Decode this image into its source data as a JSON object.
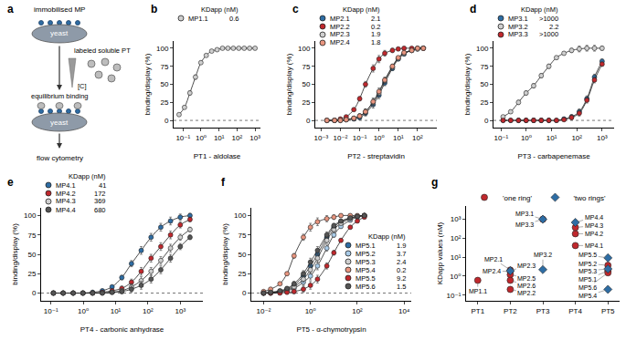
{
  "diagram": {
    "panel": "a",
    "top_label": "immobilised MP",
    "top_cell": "yeast",
    "reagent": "labeled soluble PT",
    "concentration": "[C]",
    "step": "equilibrium binding",
    "bottom_cell": "yeast",
    "readout": "flow cytometry"
  },
  "chart_data": [
    {
      "panel": "b",
      "type": "line",
      "marker": "circle",
      "log": "x",
      "grid": false,
      "legend": "upper left",
      "legend_title": "KDapp (nM)",
      "xlabel": "PT1 - aldolase",
      "ylabel": "binding/display (%)",
      "baseline": 0,
      "xlim": [
        0.03,
        2000
      ],
      "xticks": [
        {
          "value": 0.1,
          "label": "10⁻¹"
        },
        {
          "value": 1,
          "label": "10⁰"
        },
        {
          "value": 10,
          "label": "10¹"
        },
        {
          "value": 100,
          "label": "10²"
        },
        {
          "value": 1000,
          "label": "10³"
        }
      ],
      "ylim": [
        -10,
        110
      ],
      "yticks": [
        0,
        25,
        50,
        75,
        100
      ],
      "x": [
        0.06,
        0.12,
        0.24,
        0.49,
        0.98,
        1.95,
        3.9,
        7.8,
        15.6,
        31,
        62,
        125,
        250,
        500,
        1000
      ],
      "series": [
        {
          "name": "MP1.1",
          "kd": "0.6",
          "color": "#cfcfcf",
          "values": [
            8,
            18,
            38,
            60,
            80,
            90,
            96,
            98,
            100,
            100,
            100,
            100,
            100,
            100,
            100
          ],
          "errors": [
            1,
            2,
            3,
            3,
            2,
            2,
            1,
            1,
            1,
            1,
            1,
            1,
            1,
            1,
            1
          ]
        }
      ]
    },
    {
      "panel": "c",
      "type": "line",
      "marker": "circle",
      "log": "x",
      "grid": false,
      "legend": "upper left",
      "legend_title": "KDapp (nM)",
      "xlabel": "PT2 - streptavidin",
      "ylabel": "binding/display (%)",
      "baseline": 0,
      "xlim": [
        0.0005,
        1000
      ],
      "xticks": [
        {
          "value": 0.001,
          "label": "10⁻³"
        },
        {
          "value": 0.01,
          "label": "10⁻²"
        },
        {
          "value": 0.1,
          "label": "10⁻¹"
        },
        {
          "value": 1,
          "label": "10⁰"
        },
        {
          "value": 10,
          "label": "10¹"
        },
        {
          "value": 100,
          "label": "10²"
        }
      ],
      "ylim": [
        -10,
        110
      ],
      "yticks": [
        0,
        25,
        50,
        75,
        100
      ],
      "x": [
        0.002,
        0.005,
        0.01,
        0.02,
        0.05,
        0.1,
        0.2,
        0.5,
        1,
        2,
        5,
        10,
        20,
        50,
        100,
        200
      ],
      "series": [
        {
          "name": "MP2.1",
          "kd": "2.1",
          "color": "#2e6da4",
          "values": [
            0,
            0,
            0,
            1,
            2,
            4,
            10,
            22,
            35,
            52,
            72,
            85,
            92,
            97,
            99,
            100
          ],
          "errors": [
            0,
            0,
            1,
            1,
            2,
            3,
            4,
            5,
            5,
            4,
            3,
            2,
            2,
            1,
            1,
            1
          ]
        },
        {
          "name": "MP2.2",
          "kd": "0.2",
          "color": "#c0282d",
          "values": [
            0,
            0,
            2,
            5,
            15,
            30,
            50,
            72,
            85,
            93,
            97,
            99,
            100,
            100,
            100,
            100
          ],
          "errors": [
            0,
            0,
            1,
            1,
            2,
            3,
            4,
            5,
            5,
            4,
            3,
            2,
            2,
            1,
            1,
            1
          ]
        },
        {
          "name": "MP2.3",
          "kd": "1.9",
          "color": "#cfcfcf",
          "values": [
            0,
            0,
            0,
            1,
            3,
            6,
            12,
            25,
            38,
            55,
            74,
            86,
            93,
            97,
            99,
            100
          ],
          "errors": [
            0,
            0,
            1,
            1,
            2,
            3,
            4,
            5,
            5,
            4,
            3,
            2,
            2,
            1,
            1,
            1
          ]
        },
        {
          "name": "MP2.4",
          "kd": "1.8",
          "color": "#e8957f",
          "values": [
            0,
            0,
            0,
            1,
            3,
            6,
            12,
            26,
            40,
            56,
            75,
            87,
            94,
            97,
            100,
            100
          ],
          "errors": [
            0,
            0,
            1,
            1,
            2,
            3,
            4,
            5,
            5,
            4,
            3,
            2,
            2,
            1,
            1,
            1
          ]
        }
      ]
    },
    {
      "panel": "d",
      "type": "line",
      "marker": "circle",
      "log": "x",
      "grid": false,
      "legend": "upper left",
      "legend_title": "KDapp (nM)",
      "xlabel": "PT3 - carbapenemase",
      "ylabel": "binding/display (%)",
      "baseline": 0,
      "xlim": [
        0.05,
        3000
      ],
      "xticks": [
        {
          "value": 0.1,
          "label": "10⁻¹"
        },
        {
          "value": 1,
          "label": "10⁰"
        },
        {
          "value": 10,
          "label": "10¹"
        },
        {
          "value": 100,
          "label": "10²"
        },
        {
          "value": 1000,
          "label": "10³"
        }
      ],
      "ylim": [
        -10,
        110
      ],
      "yticks": [
        0,
        25,
        50,
        75,
        100
      ],
      "x": [
        0.12,
        0.24,
        0.49,
        0.98,
        1.95,
        3.9,
        7.8,
        15.6,
        31,
        62,
        125,
        250,
        500,
        1000
      ],
      "series": [
        {
          "name": "MP3.1",
          "kd": ">1000",
          "color": "#2e6da4",
          "values": [
            0,
            0,
            0,
            0,
            0,
            0,
            0,
            0,
            2,
            5,
            12,
            30,
            60,
            82
          ],
          "errors": [
            1,
            2,
            3,
            3,
            3,
            3,
            3,
            2,
            2,
            3,
            4,
            4,
            4,
            3
          ]
        },
        {
          "name": "MP3.2",
          "kd": "2.2",
          "color": "#cfcfcf",
          "values": [
            5,
            12,
            25,
            38,
            48,
            62,
            75,
            87,
            93,
            97,
            99,
            100,
            100,
            100
          ],
          "errors": [
            1,
            2,
            3,
            3,
            3,
            3,
            3,
            2,
            2,
            3,
            4,
            4,
            4,
            3
          ]
        },
        {
          "name": "MP3.3",
          "kd": ">1000",
          "color": "#c0282d",
          "values": [
            0,
            0,
            0,
            0,
            0,
            0,
            0,
            0,
            1,
            4,
            10,
            28,
            56,
            78
          ],
          "errors": [
            1,
            2,
            3,
            3,
            3,
            3,
            3,
            2,
            2,
            3,
            4,
            4,
            4,
            3
          ]
        }
      ]
    },
    {
      "panel": "e",
      "type": "line",
      "marker": "circle",
      "log": "x",
      "grid": false,
      "legend": "upper left",
      "legend_title": "KDapp (nM)",
      "xlabel": "PT4 - carbonic anhydrase",
      "ylabel": "binding/display (%)",
      "baseline": 0,
      "xlim": [
        0.05,
        5000
      ],
      "xticks": [
        {
          "value": 0.1,
          "label": "10⁻¹"
        },
        {
          "value": 1,
          "label": "10⁰"
        },
        {
          "value": 10,
          "label": "10¹"
        },
        {
          "value": 100,
          "label": "10²"
        },
        {
          "value": 1000,
          "label": "10³"
        }
      ],
      "ylim": [
        -10,
        110
      ],
      "yticks": [
        0,
        25,
        50,
        75,
        100
      ],
      "x": [
        0.12,
        0.24,
        0.49,
        0.98,
        1.95,
        3.9,
        7.8,
        15.6,
        31,
        62,
        125,
        250,
        500,
        1000,
        2000
      ],
      "series": [
        {
          "name": "MP4.1",
          "kd": "41",
          "color": "#2e6da4",
          "values": [
            0,
            0,
            0,
            0,
            1,
            3,
            8,
            20,
            38,
            55,
            72,
            85,
            93,
            98,
            100
          ],
          "errors": [
            0,
            0,
            0,
            0,
            1,
            1,
            2,
            3,
            4,
            5,
            5,
            5,
            5,
            4,
            3
          ]
        },
        {
          "name": "MP4.2",
          "kd": "172",
          "color": "#c0282d",
          "values": [
            0,
            0,
            0,
            0,
            0,
            1,
            3,
            6,
            14,
            28,
            45,
            60,
            75,
            88,
            95
          ],
          "errors": [
            0,
            0,
            0,
            0,
            1,
            1,
            2,
            3,
            4,
            5,
            5,
            5,
            5,
            4,
            3
          ]
        },
        {
          "name": "MP4.3",
          "kd": "369",
          "color": "#cfcfcf",
          "values": [
            0,
            0,
            0,
            0,
            0,
            0,
            1,
            3,
            8,
            16,
            28,
            42,
            58,
            72,
            82
          ],
          "errors": [
            0,
            0,
            0,
            0,
            1,
            1,
            2,
            3,
            4,
            5,
            5,
            5,
            5,
            4,
            3
          ]
        },
        {
          "name": "MP4.4",
          "kd": "680",
          "color": "#555555",
          "values": [
            0,
            0,
            0,
            0,
            0,
            0,
            1,
            2,
            5,
            10,
            18,
            30,
            45,
            60,
            72
          ],
          "errors": [
            0,
            0,
            0,
            0,
            1,
            1,
            2,
            3,
            4,
            5,
            5,
            5,
            5,
            4,
            3
          ]
        }
      ]
    },
    {
      "panel": "f",
      "type": "line",
      "marker": "circle",
      "log": "x",
      "grid": false,
      "legend": "lower right",
      "legend_title": "KDapp (nM)",
      "xlabel": "PT5 - α-chymotrypsin",
      "ylabel": "binding/display (%)",
      "baseline": 0,
      "xlim": [
        0.003,
        20000
      ],
      "xticks": [
        {
          "value": 0.01,
          "label": "10⁻²"
        },
        {
          "value": 1,
          "label": "10⁰"
        },
        {
          "value": 100,
          "label": "10²"
        },
        {
          "value": 10000,
          "label": "10⁴"
        }
      ],
      "ylim": [
        -10,
        110
      ],
      "yticks": [
        0,
        25,
        50,
        75,
        100
      ],
      "x": [
        0.01,
        0.02,
        0.05,
        0.1,
        0.2,
        0.5,
        1,
        2,
        5,
        10,
        20,
        50,
        100,
        200
      ],
      "series": [
        {
          "name": "MP5.1",
          "kd": "1.9",
          "color": "#2e6da4",
          "values": [
            0,
            1,
            2,
            5,
            10,
            22,
            35,
            50,
            72,
            85,
            92,
            97,
            99,
            100
          ],
          "errors": [
            0,
            1,
            1,
            2,
            3,
            4,
            5,
            5,
            4,
            3,
            2,
            2,
            1,
            1
          ]
        },
        {
          "name": "MP5.2",
          "kd": "3.7",
          "color": "#a9cbe8",
          "values": [
            0,
            0,
            1,
            3,
            6,
            14,
            22,
            35,
            58,
            75,
            86,
            94,
            98,
            100
          ],
          "errors": [
            0,
            1,
            1,
            2,
            3,
            4,
            5,
            5,
            4,
            3,
            2,
            2,
            1,
            1
          ]
        },
        {
          "name": "MP5.3",
          "kd": "2.4",
          "color": "#cfcfcf",
          "values": [
            0,
            0,
            2,
            4,
            8,
            18,
            30,
            45,
            68,
            82,
            90,
            96,
            99,
            100
          ],
          "errors": [
            0,
            1,
            1,
            2,
            3,
            4,
            5,
            5,
            4,
            3,
            2,
            2,
            1,
            1
          ]
        },
        {
          "name": "MP5.4",
          "kd": "0.2",
          "color": "#e8957f",
          "values": [
            2,
            5,
            12,
            25,
            48,
            72,
            85,
            92,
            96,
            98,
            100,
            100,
            100,
            100
          ],
          "errors": [
            0,
            1,
            1,
            2,
            3,
            4,
            5,
            5,
            4,
            3,
            2,
            2,
            1,
            1
          ]
        },
        {
          "name": "MP5.5",
          "kd": "9.2",
          "color": "#c0282d",
          "values": [
            0,
            0,
            0,
            1,
            2,
            5,
            10,
            18,
            35,
            52,
            68,
            85,
            93,
            98
          ],
          "errors": [
            0,
            1,
            1,
            2,
            3,
            4,
            5,
            5,
            4,
            3,
            2,
            2,
            1,
            1
          ]
        },
        {
          "name": "MP5.6",
          "kd": "1.5",
          "color": "#555555",
          "values": [
            0,
            1,
            3,
            6,
            12,
            25,
            40,
            55,
            75,
            87,
            93,
            97,
            99,
            100
          ],
          "errors": [
            0,
            1,
            1,
            2,
            3,
            4,
            5,
            5,
            4,
            3,
            2,
            2,
            1,
            1
          ]
        }
      ]
    },
    {
      "panel": "g",
      "type": "scatter",
      "log": "y",
      "grid": false,
      "legend": "top",
      "ylabel": "KDapp values (nM)",
      "categories": [
        "PT1",
        "PT2",
        "PT3",
        "PT4",
        "PT5"
      ],
      "ylim": [
        0.05,
        5000
      ],
      "yticks": [
        {
          "value": 0.1,
          "label": "10⁻¹"
        },
        {
          "value": 1,
          "label": "10⁰"
        },
        {
          "value": 10,
          "label": "10¹"
        },
        {
          "value": 100,
          "label": "10²"
        },
        {
          "value": 1000,
          "label": "10³"
        }
      ],
      "series": [
        {
          "name": "'one ring'",
          "color": "#c0282d",
          "marker": "circle",
          "x": [
            "PT1",
            "PT2",
            "PT2",
            "PT2",
            "PT2",
            "PT2",
            "PT3",
            "PT4",
            "PT4",
            "PT4",
            "PT5",
            "PT5",
            "PT5"
          ],
          "labels": [
            "MP1.1",
            "MP2.1",
            "MP2.2",
            "MP2.4",
            "MP2.5",
            "MP2.6",
            "MP3.3",
            "MP4.1",
            "MP4.2",
            "MP4.3",
            "MP5.1",
            "MP5.2",
            "MP5.6"
          ],
          "values": [
            0.6,
            2.1,
            0.2,
            1.8,
            1.2,
            0.6,
            1000,
            41,
            172,
            369,
            1.9,
            3.7,
            1.5
          ]
        },
        {
          "name": "'two rings'",
          "color": "#2e6da4",
          "marker": "diamond",
          "x": [
            "PT2",
            "PT3",
            "PT3",
            "PT4",
            "PT5",
            "PT5",
            "PT5"
          ],
          "labels": [
            "MP2.3",
            "MP3.1",
            "MP3.2",
            "MP4.4",
            "MP5.3",
            "MP5.4",
            "MP5.5"
          ],
          "values": [
            1.9,
            1000,
            2.2,
            680,
            2.4,
            0.2,
            9.2
          ]
        }
      ]
    }
  ]
}
